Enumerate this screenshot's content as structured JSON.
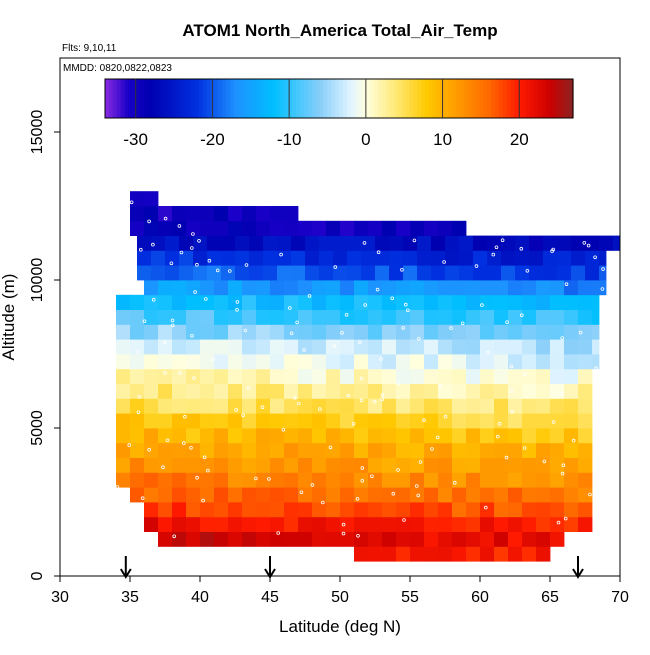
{
  "chart_data": {
    "type": "heatmap",
    "title": "ATOM1 North_America Total_Air_Temp",
    "annotations": {
      "flights": "Flts: 9,10,11",
      "dates": "MMDD: 0820,0822,0823"
    },
    "xlabel": "Latitude (deg N)",
    "ylabel": "Altitude (m)",
    "xlim": [
      30,
      70
    ],
    "ylim": [
      0,
      17500
    ],
    "x_ticks": [
      30,
      35,
      40,
      45,
      50,
      55,
      60,
      65,
      70
    ],
    "y_ticks": [
      0,
      5000,
      10000,
      15000
    ],
    "colorbar": {
      "range": [
        -34,
        27
      ],
      "ticks": [
        -30,
        -20,
        -10,
        0,
        10,
        20
      ],
      "stops": [
        {
          "v": -34,
          "c": "#8a2be2"
        },
        {
          "v": -31,
          "c": "#1a00c8"
        },
        {
          "v": -28,
          "c": "#0000b0"
        },
        {
          "v": -22,
          "c": "#0030e0"
        },
        {
          "v": -17,
          "c": "#1e90ff"
        },
        {
          "v": -12,
          "c": "#00bfff"
        },
        {
          "v": -6,
          "c": "#87cefa"
        },
        {
          "v": -2,
          "c": "#e0f4ff"
        },
        {
          "v": 0,
          "c": "#ffffe0"
        },
        {
          "v": 4,
          "c": "#ffe873"
        },
        {
          "v": 8,
          "c": "#ffc800"
        },
        {
          "v": 12,
          "c": "#ff9900"
        },
        {
          "v": 16,
          "c": "#ff6a00"
        },
        {
          "v": 20,
          "c": "#ff1a00"
        },
        {
          "v": 24,
          "c": "#cc0000"
        },
        {
          "v": 27,
          "c": "#8b2323"
        }
      ]
    },
    "grid": false,
    "cell_size": {
      "lat": 1,
      "alt_m": 500
    },
    "profile_markers_lat": [
      34.7,
      45,
      67
    ],
    "altitude_bands": [
      {
        "alt": [
          500,
          1000
        ],
        "lat": [
          51,
          65
        ],
        "temp": 21
      },
      {
        "alt": [
          1000,
          1500
        ],
        "lat": [
          37,
          66
        ],
        "temp": 23
      },
      {
        "alt": [
          1500,
          2000
        ],
        "lat": [
          36,
          68
        ],
        "temp": 21
      },
      {
        "alt": [
          2000,
          2500
        ],
        "lat": [
          36,
          68
        ],
        "temp": 18
      },
      {
        "alt": [
          2500,
          3000
        ],
        "lat": [
          35,
          68
        ],
        "temp": 16
      },
      {
        "alt": [
          3000,
          3500
        ],
        "lat": [
          34,
          68
        ],
        "temp": 14
      },
      {
        "alt": [
          3500,
          4000
        ],
        "lat": [
          34,
          68
        ],
        "temp": 12
      },
      {
        "alt": [
          4000,
          4500
        ],
        "lat": [
          34,
          68
        ],
        "temp": 11
      },
      {
        "alt": [
          4500,
          5000
        ],
        "lat": [
          34,
          68
        ],
        "temp": 9
      },
      {
        "alt": [
          5000,
          5500
        ],
        "lat": [
          34,
          68
        ],
        "temp": 7
      },
      {
        "alt": [
          5500,
          6000
        ],
        "lat": [
          34,
          68
        ],
        "temp": 5
      },
      {
        "alt": [
          6000,
          6500
        ],
        "lat": [
          34,
          68
        ],
        "temp": 3
      },
      {
        "alt": [
          6500,
          7000
        ],
        "lat": [
          34,
          68
        ],
        "temp": 1
      },
      {
        "alt": [
          7000,
          7500
        ],
        "lat": [
          34,
          68.5
        ],
        "temp": -1
      },
      {
        "alt": [
          7500,
          8000
        ],
        "lat": [
          34,
          68.5
        ],
        "temp": -3
      },
      {
        "alt": [
          8000,
          8500
        ],
        "lat": [
          34,
          68.5
        ],
        "temp": -6
      },
      {
        "alt": [
          8500,
          9000
        ],
        "lat": [
          34,
          68.5
        ],
        "temp": -9
      },
      {
        "alt": [
          9000,
          9500
        ],
        "lat": [
          34,
          68.5
        ],
        "temp": -12
      },
      {
        "alt": [
          9500,
          10000
        ],
        "lat": [
          36,
          69
        ],
        "temp": -16
      },
      {
        "alt": [
          10000,
          10500
        ],
        "lat": [
          35.5,
          69
        ],
        "temp": -20
      },
      {
        "alt": [
          10500,
          11000
        ],
        "lat": [
          35.5,
          69
        ],
        "temp": -23
      },
      {
        "alt": [
          11000,
          11500
        ],
        "lat": [
          35.5,
          70
        ],
        "temp": -26
      },
      {
        "alt": [
          11500,
          12000
        ],
        "lat": [
          35,
          59
        ],
        "temp": -29
      },
      {
        "alt": [
          12000,
          12500
        ],
        "lat": [
          35,
          47
        ],
        "temp": -30
      },
      {
        "alt": [
          12500,
          13000
        ],
        "lat": [
          35,
          37
        ],
        "temp": -32
      }
    ]
  }
}
